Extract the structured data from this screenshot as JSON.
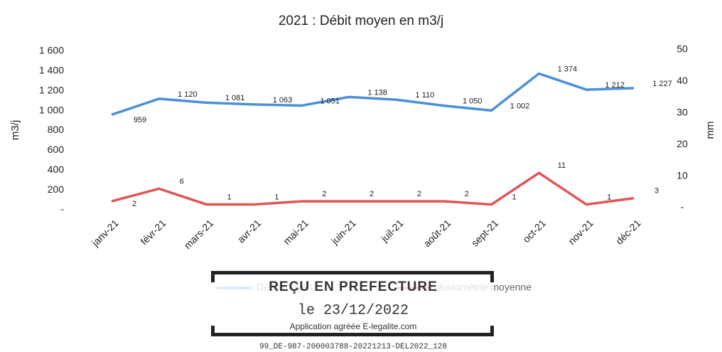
{
  "chart_data": {
    "type": "line",
    "title": "2021 : Débit moyen en m3/j",
    "ylabel": "m3/j",
    "y2label": "mm",
    "categories": [
      "janv-21",
      "févr-21",
      "mars-21",
      "avr-21",
      "mai-21",
      "juin-21",
      "juil-21",
      "août-21",
      "sept-21",
      "oct-21",
      "nov-21",
      "déc-21"
    ],
    "series": [
      {
        "name": "Débit moyen",
        "color": "#4a90d9",
        "axis": "y",
        "values": [
          959,
          1120,
          1081,
          1063,
          1051,
          1138,
          1110,
          1050,
          1002,
          1374,
          1212,
          1227
        ],
        "value_labels": [
          "959",
          "1 120",
          "1 081",
          "1 063",
          "1 051",
          "1 138",
          "1 110",
          "1 050",
          "1 002",
          "1 374",
          "1 212",
          "1 227"
        ]
      },
      {
        "name": "pluviométrie moyenne",
        "color": "#e05555",
        "axis": "y2",
        "values": [
          2,
          6,
          1,
          1,
          2,
          2,
          2,
          2,
          1,
          11,
          1,
          3
        ]
      }
    ],
    "ylim": [
      0,
      1600
    ],
    "yticks": [
      {
        "value": 0,
        "label": "-"
      },
      200,
      400,
      600,
      800,
      {
        "value": 1000,
        "label": "1 000"
      },
      {
        "value": 1200,
        "label": "1 200"
      },
      {
        "value": 1400,
        "label": "1 400"
      },
      {
        "value": 1600,
        "label": "1 600"
      }
    ],
    "y2lim": [
      0,
      50
    ],
    "y2ticks": [
      {
        "value": 0,
        "label": "-"
      },
      10,
      20,
      30,
      40,
      50
    ],
    "grid": false,
    "legend": "bottom"
  },
  "stamp": {
    "title": "REÇU EN PREFECTURE",
    "date": "le 23/12/2022",
    "app": "Application agréée E-legalite.com",
    "ref": "99_DE-987-200003788-20221213-DEL2022_128"
  }
}
